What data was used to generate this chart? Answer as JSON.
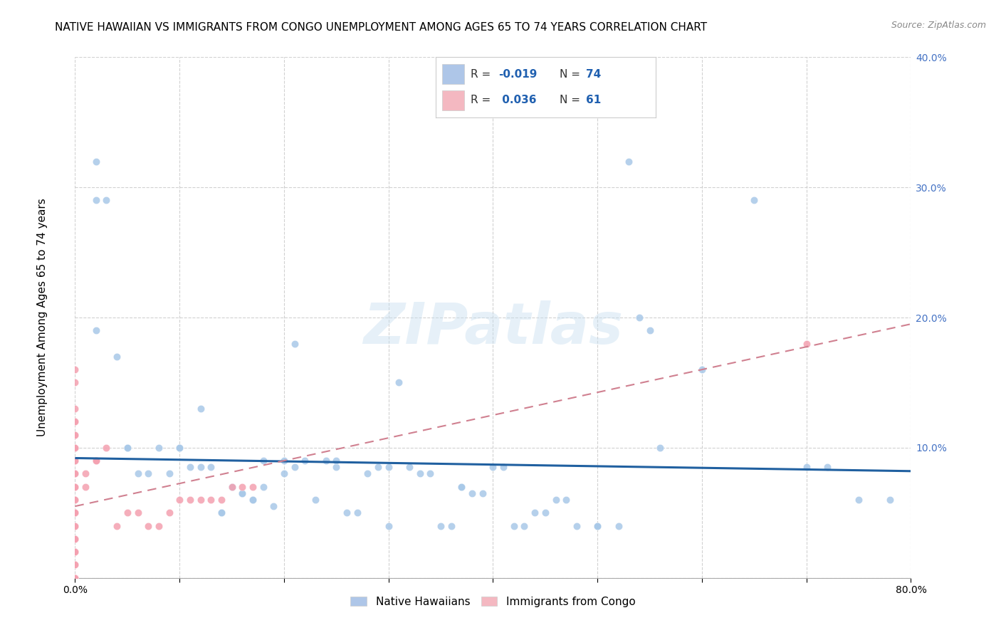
{
  "title": "NATIVE HAWAIIAN VS IMMIGRANTS FROM CONGO UNEMPLOYMENT AMONG AGES 65 TO 74 YEARS CORRELATION CHART",
  "source": "Source: ZipAtlas.com",
  "ylabel": "Unemployment Among Ages 65 to 74 years",
  "xlim": [
    0.0,
    0.8
  ],
  "ylim": [
    0.0,
    0.4
  ],
  "xticks": [
    0.0,
    0.1,
    0.2,
    0.3,
    0.4,
    0.5,
    0.6,
    0.7,
    0.8
  ],
  "yticks": [
    0.0,
    0.1,
    0.2,
    0.3,
    0.4
  ],
  "watermark": "ZIPatlas",
  "blue_scatter_x": [
    0.02,
    0.02,
    0.02,
    0.03,
    0.04,
    0.05,
    0.05,
    0.06,
    0.07,
    0.08,
    0.09,
    0.1,
    0.1,
    0.11,
    0.12,
    0.12,
    0.13,
    0.14,
    0.14,
    0.15,
    0.15,
    0.16,
    0.16,
    0.17,
    0.17,
    0.18,
    0.18,
    0.19,
    0.2,
    0.2,
    0.21,
    0.21,
    0.22,
    0.23,
    0.24,
    0.25,
    0.25,
    0.26,
    0.27,
    0.28,
    0.29,
    0.3,
    0.3,
    0.31,
    0.32,
    0.33,
    0.34,
    0.35,
    0.36,
    0.37,
    0.37,
    0.38,
    0.39,
    0.4,
    0.41,
    0.42,
    0.43,
    0.44,
    0.45,
    0.46,
    0.47,
    0.48,
    0.5,
    0.5,
    0.52,
    0.53,
    0.54,
    0.55,
    0.56,
    0.6,
    0.65,
    0.7,
    0.72,
    0.75,
    0.78
  ],
  "blue_scatter_y": [
    0.32,
    0.29,
    0.19,
    0.29,
    0.17,
    0.1,
    0.1,
    0.08,
    0.08,
    0.1,
    0.08,
    0.1,
    0.1,
    0.085,
    0.085,
    0.13,
    0.085,
    0.05,
    0.05,
    0.07,
    0.07,
    0.065,
    0.065,
    0.06,
    0.06,
    0.07,
    0.09,
    0.055,
    0.08,
    0.09,
    0.18,
    0.085,
    0.09,
    0.06,
    0.09,
    0.085,
    0.09,
    0.05,
    0.05,
    0.08,
    0.085,
    0.085,
    0.04,
    0.15,
    0.085,
    0.08,
    0.08,
    0.04,
    0.04,
    0.07,
    0.07,
    0.065,
    0.065,
    0.085,
    0.085,
    0.04,
    0.04,
    0.05,
    0.05,
    0.06,
    0.06,
    0.04,
    0.04,
    0.04,
    0.04,
    0.32,
    0.2,
    0.19,
    0.1,
    0.16,
    0.29,
    0.085,
    0.085,
    0.06,
    0.06
  ],
  "pink_scatter_x": [
    0.0,
    0.0,
    0.0,
    0.0,
    0.0,
    0.0,
    0.0,
    0.0,
    0.0,
    0.0,
    0.0,
    0.0,
    0.0,
    0.0,
    0.0,
    0.0,
    0.0,
    0.0,
    0.0,
    0.0,
    0.0,
    0.0,
    0.0,
    0.0,
    0.0,
    0.0,
    0.0,
    0.0,
    0.0,
    0.0,
    0.0,
    0.0,
    0.0,
    0.0,
    0.0,
    0.0,
    0.0,
    0.0,
    0.0,
    0.0,
    0.01,
    0.01,
    0.02,
    0.02,
    0.03,
    0.04,
    0.05,
    0.06,
    0.07,
    0.08,
    0.09,
    0.1,
    0.11,
    0.12,
    0.13,
    0.14,
    0.15,
    0.16,
    0.17,
    0.7
  ],
  "pink_scatter_y": [
    0.0,
    0.0,
    0.0,
    0.0,
    0.0,
    0.0,
    0.0,
    0.0,
    0.0,
    0.0,
    0.01,
    0.01,
    0.02,
    0.02,
    0.02,
    0.03,
    0.03,
    0.03,
    0.04,
    0.04,
    0.05,
    0.05,
    0.05,
    0.06,
    0.06,
    0.07,
    0.07,
    0.08,
    0.08,
    0.09,
    0.09,
    0.1,
    0.1,
    0.11,
    0.11,
    0.12,
    0.12,
    0.13,
    0.15,
    0.16,
    0.07,
    0.08,
    0.09,
    0.09,
    0.1,
    0.04,
    0.05,
    0.05,
    0.04,
    0.04,
    0.05,
    0.06,
    0.06,
    0.06,
    0.06,
    0.06,
    0.07,
    0.07,
    0.07,
    0.18
  ],
  "blue_line_x": [
    0.0,
    0.8
  ],
  "blue_line_y": [
    0.092,
    0.082
  ],
  "pink_line_x": [
    0.0,
    0.8
  ],
  "pink_line_y": [
    0.055,
    0.195
  ],
  "blue_color": "#a8c8e8",
  "pink_color": "#f4a0b0",
  "blue_line_color": "#2060a0",
  "pink_line_color": "#d08090",
  "grid_color": "#cccccc",
  "background_color": "#ffffff",
  "title_fontsize": 11,
  "axis_label_fontsize": 11,
  "tick_fontsize": 10,
  "scatter_size": 55,
  "legend_blue_color": "#aec6e8",
  "legend_pink_color": "#f4b8c1"
}
